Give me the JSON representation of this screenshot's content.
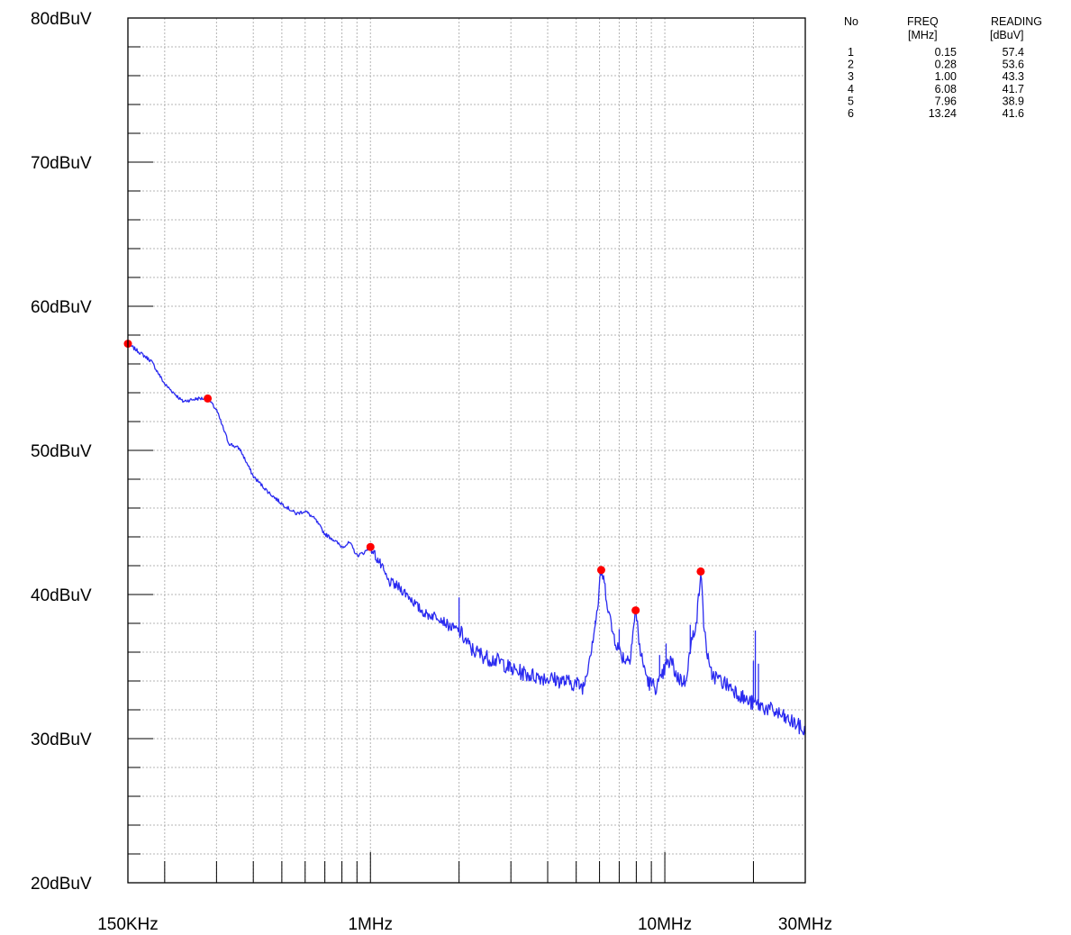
{
  "chart_data": {
    "type": "line",
    "x_scale": "log",
    "y_unit": "dBuV",
    "xlim_mhz": [
      0.15,
      30
    ],
    "ylim": [
      20,
      80
    ],
    "grid": true,
    "y_ticks": [
      {
        "value": 80,
        "label": "80dBuV"
      },
      {
        "value": 70,
        "label": "70dBuV"
      },
      {
        "value": 60,
        "label": "60dBuV"
      },
      {
        "value": 50,
        "label": "50dBuV"
      },
      {
        "value": 40,
        "label": "40dBuV"
      },
      {
        "value": 30,
        "label": "30dBuV"
      },
      {
        "value": 20,
        "label": "20dBuV"
      }
    ],
    "x_ticks": [
      {
        "value": 0.15,
        "label": "150KHz"
      },
      {
        "value": 1,
        "label": "1MHz"
      },
      {
        "value": 10,
        "label": "10MHz"
      },
      {
        "value": 30,
        "label": "30MHz"
      }
    ],
    "colors": {
      "trace": "#2a2af0",
      "marker": "#ff0000",
      "grid": "#b4b4b4",
      "axis": "#000000"
    },
    "series": [
      {
        "x": [
          0.15,
          0.18,
          0.2,
          0.23,
          0.26,
          0.28,
          0.3,
          0.33,
          0.36,
          0.4,
          0.45,
          0.5,
          0.56,
          0.6,
          0.65,
          0.7,
          0.75,
          0.8,
          0.85,
          0.9,
          0.95,
          1.0,
          1.08,
          1.15,
          1.25,
          1.35,
          1.45,
          1.55,
          1.7,
          1.85,
          2.0,
          2.2,
          2.5,
          2.8,
          3.0,
          3.5,
          4.0,
          4.5,
          5.0,
          5.3,
          5.6,
          5.9,
          6.08,
          6.3,
          6.6,
          7.0,
          7.3,
          7.6,
          7.96,
          8.3,
          8.8,
          9.3,
          9.7,
          10.0,
          10.5,
          11.0,
          11.7,
          12.3,
          12.9,
          13.24,
          13.6,
          14.2,
          15.5,
          17.0,
          19.0,
          21.0,
          24.0,
          26.0,
          28.0,
          30.0
        ],
        "y": [
          57.4,
          56.2,
          54.6,
          53.4,
          53.6,
          53.6,
          52.8,
          50.5,
          50.1,
          48.2,
          47.1,
          46.3,
          45.6,
          45.8,
          45.2,
          44.2,
          43.8,
          43.3,
          43.6,
          42.7,
          42.9,
          43.3,
          42.1,
          40.9,
          40.5,
          39.9,
          39.1,
          38.6,
          38.5,
          37.8,
          37.5,
          36.2,
          35.6,
          35.3,
          34.8,
          34.4,
          34.2,
          34.0,
          33.8,
          33.6,
          36.1,
          38.9,
          41.7,
          40.2,
          37.6,
          36.1,
          35.5,
          35.6,
          38.9,
          35.7,
          33.9,
          33.6,
          34.0,
          34.9,
          35.4,
          34.3,
          33.9,
          36.5,
          38.7,
          41.6,
          37.7,
          34.6,
          34.0,
          33.5,
          32.6,
          32.3,
          31.8,
          31.3,
          31.0,
          30.4
        ],
        "noise_spikes": [
          {
            "x": 2.0,
            "y": 39.8
          },
          {
            "x": 5.8,
            "y": 38.2
          },
          {
            "x": 7.0,
            "y": 37.6
          },
          {
            "x": 9.6,
            "y": 35.8
          },
          {
            "x": 10.1,
            "y": 36.6
          },
          {
            "x": 12.2,
            "y": 37.9
          },
          {
            "x": 20.0,
            "y": 35.4
          },
          {
            "x": 20.3,
            "y": 37.5
          },
          {
            "x": 20.8,
            "y": 35.2
          }
        ]
      }
    ],
    "markers_table": {
      "headers": {
        "no": "No",
        "freq": "FREQ",
        "freq_unit": "[MHz]",
        "reading": "READING",
        "reading_unit": "[dBuV]"
      },
      "rows": [
        {
          "no": "1",
          "freq": "0.15",
          "reading": "57.4"
        },
        {
          "no": "2",
          "freq": "0.28",
          "reading": "53.6"
        },
        {
          "no": "3",
          "freq": "1.00",
          "reading": "43.3"
        },
        {
          "no": "4",
          "freq": "6.08",
          "reading": "41.7"
        },
        {
          "no": "5",
          "freq": "7.96",
          "reading": "38.9"
        },
        {
          "no": "6",
          "freq": "13.24",
          "reading": "41.6"
        }
      ]
    }
  }
}
